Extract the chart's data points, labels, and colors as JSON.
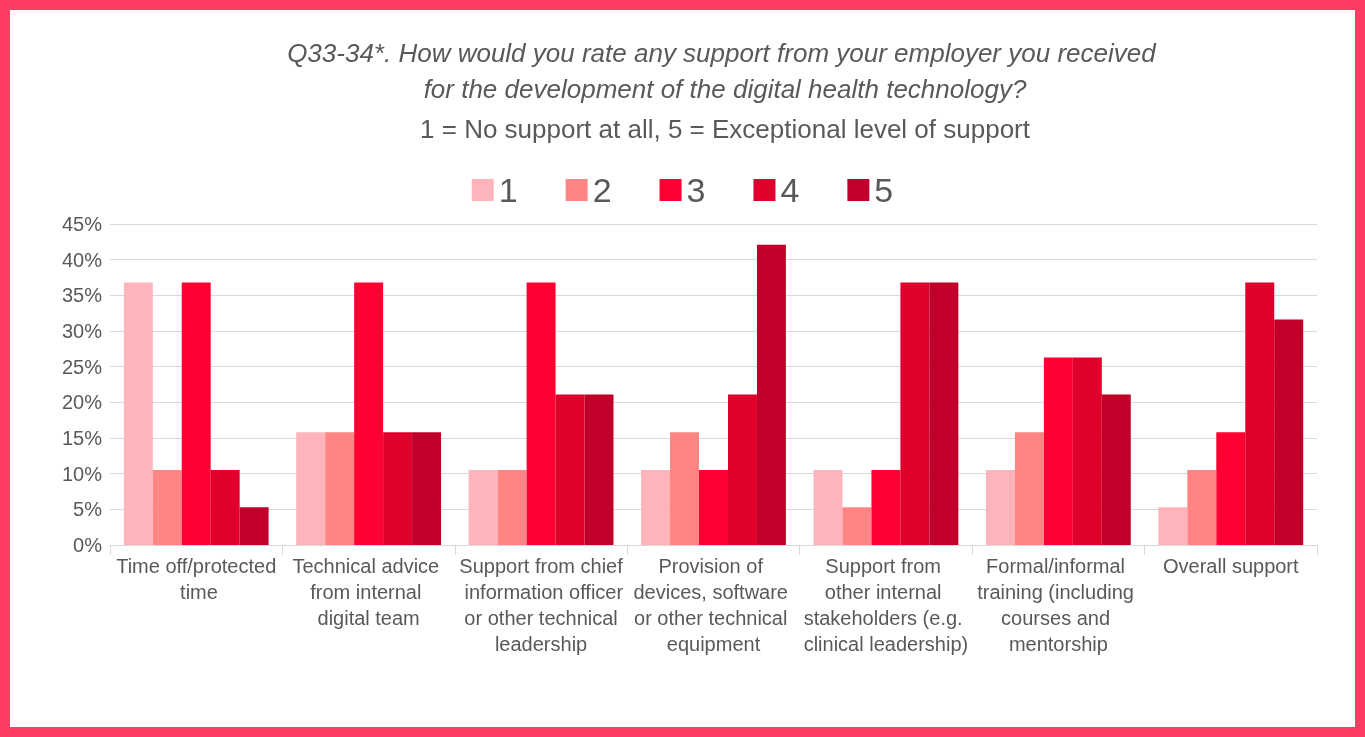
{
  "chart_data": {
    "type": "bar",
    "title": "Q33-34*. How would you rate any support from your employer you received for the development of the digital health technology?",
    "subtitle": "1 = No support at all, 5 = Exceptional level of support",
    "categories": [
      "Time off/protected time",
      "Technical advice from internal digital team",
      "Support from chief information officer or other technical leadership",
      "Provision of devices, software or other technical equipment",
      "Support from other internal stakeholders (e.g. clinical leadership)",
      "Formal/informal training (including courses and mentorship",
      "Overall support"
    ],
    "series": [
      {
        "name": "1",
        "color": "#ffb3ba",
        "values": [
          36.8,
          15.8,
          10.5,
          10.5,
          10.5,
          10.5,
          5.3
        ]
      },
      {
        "name": "2",
        "color": "#ff8585",
        "values": [
          10.5,
          15.8,
          10.5,
          15.8,
          5.3,
          15.8,
          10.5
        ]
      },
      {
        "name": "3",
        "color": "#ff0033",
        "values": [
          36.8,
          36.8,
          36.8,
          10.5,
          10.5,
          26.3,
          15.8
        ]
      },
      {
        "name": "4",
        "color": "#e0002c",
        "values": [
          10.5,
          15.8,
          21.1,
          21.1,
          36.8,
          26.3,
          36.8
        ]
      },
      {
        "name": "5",
        "color": "#c0002a",
        "values": [
          5.3,
          15.8,
          21.1,
          42.1,
          36.8,
          21.1,
          31.6
        ]
      }
    ],
    "ylim": [
      0,
      45
    ],
    "yticks": [
      {
        "value": 0,
        "label": "0%"
      },
      {
        "value": 5,
        "label": "5%"
      },
      {
        "value": 10,
        "label": "10%"
      },
      {
        "value": 15,
        "label": "15%"
      },
      {
        "value": 20,
        "label": "20%"
      },
      {
        "value": 25,
        "label": "25%"
      },
      {
        "value": 30,
        "label": "30%"
      },
      {
        "value": 35,
        "label": "35%"
      },
      {
        "value": 40,
        "label": "40%"
      },
      {
        "value": 45,
        "label": "45%"
      }
    ],
    "grid": "y",
    "legend": "top"
  }
}
